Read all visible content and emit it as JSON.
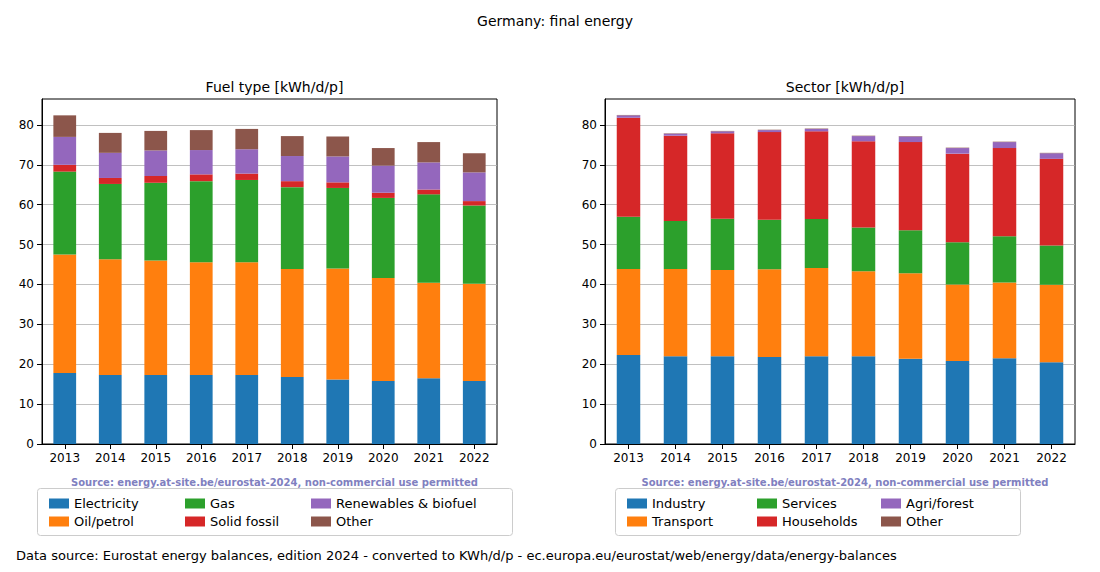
{
  "title": "Germany: final energy",
  "footer": "Data source: Eurostat energy balances, edition 2024 - converted to KWh/d/p - ec.europa.eu/eurostat/web/energy/data/energy-balances",
  "chart_data": [
    {
      "type": "bar",
      "title": "Fuel type [kWh/d/p]",
      "annotations": [
        "Source: energy.at-site.be/eurostat-2024, non-commercial use permitted"
      ],
      "categories": [
        "2013",
        "2014",
        "2015",
        "2016",
        "2017",
        "2018",
        "2019",
        "2020",
        "2021",
        "2022"
      ],
      "stacked": true,
      "grid": true,
      "legend": "bottom",
      "ylim": [
        0,
        86.5
      ],
      "yticks": [
        0,
        10,
        20,
        30,
        40,
        50,
        60,
        70,
        80
      ],
      "series": [
        {
          "name": "Electricity",
          "color": "#1f77b4",
          "values": [
            17.8,
            17.3,
            17.3,
            17.3,
            17.3,
            16.8,
            16.2,
            15.8,
            16.5,
            15.8
          ]
        },
        {
          "name": "Oil/petrol",
          "color": "#ff7f0e",
          "values": [
            29.7,
            29.0,
            28.7,
            28.3,
            28.3,
            27.1,
            27.8,
            25.8,
            23.9,
            24.4
          ]
        },
        {
          "name": "Gas",
          "color": "#2ca02c",
          "values": [
            20.8,
            18.9,
            19.5,
            20.3,
            20.6,
            20.5,
            20.2,
            20.1,
            22.2,
            19.6
          ]
        },
        {
          "name": "Solid fossil",
          "color": "#d62728",
          "values": [
            1.7,
            1.5,
            1.7,
            1.7,
            1.6,
            1.5,
            1.4,
            1.3,
            1.2,
            1.1
          ]
        },
        {
          "name": "Renewables & biofuel",
          "color": "#9467bd",
          "values": [
            7.0,
            6.3,
            6.4,
            6.1,
            6.1,
            6.3,
            6.5,
            6.8,
            6.8,
            7.2
          ]
        },
        {
          "name": "Other",
          "color": "#8c564b",
          "values": [
            5.4,
            5.0,
            4.9,
            5.0,
            5.1,
            5.0,
            5.0,
            4.4,
            5.1,
            4.8
          ]
        }
      ]
    },
    {
      "type": "bar",
      "title": "Sector [kWh/d/p]",
      "annotations": [
        "Source: energy.at-site.be/eurostat-2024, non-commercial use permitted"
      ],
      "categories": [
        "2013",
        "2014",
        "2015",
        "2016",
        "2017",
        "2018",
        "2019",
        "2020",
        "2021",
        "2022"
      ],
      "stacked": true,
      "grid": true,
      "legend": "bottom",
      "ylim": [
        0,
        86.5
      ],
      "yticks": [
        0,
        10,
        20,
        30,
        40,
        50,
        60,
        70,
        80
      ],
      "series": [
        {
          "name": "Industry",
          "color": "#1f77b4",
          "values": [
            22.3,
            22.0,
            22.0,
            21.8,
            22.0,
            22.0,
            21.4,
            20.8,
            21.5,
            20.5
          ]
        },
        {
          "name": "Transport",
          "color": "#ff7f0e",
          "values": [
            21.6,
            21.9,
            21.6,
            22.0,
            22.1,
            21.3,
            21.4,
            19.2,
            19.0,
            19.4
          ]
        },
        {
          "name": "Services",
          "color": "#2ca02c",
          "values": [
            13.1,
            12.0,
            12.9,
            12.4,
            12.3,
            11.0,
            10.8,
            10.6,
            11.6,
            9.9
          ]
        },
        {
          "name": "Households",
          "color": "#d62728",
          "values": [
            24.8,
            21.4,
            21.4,
            22.0,
            22.0,
            21.6,
            22.1,
            22.2,
            22.1,
            21.7
          ]
        },
        {
          "name": "Agri/forest",
          "color": "#9467bd",
          "values": [
            0.6,
            0.5,
            0.5,
            0.5,
            0.6,
            1.3,
            1.4,
            1.4,
            1.5,
            1.4
          ]
        },
        {
          "name": "Other",
          "color": "#8c564b",
          "values": [
            0.1,
            0.1,
            0.1,
            0.1,
            0.1,
            0.1,
            0.1,
            0.1,
            0.1,
            0.1
          ]
        }
      ]
    }
  ]
}
